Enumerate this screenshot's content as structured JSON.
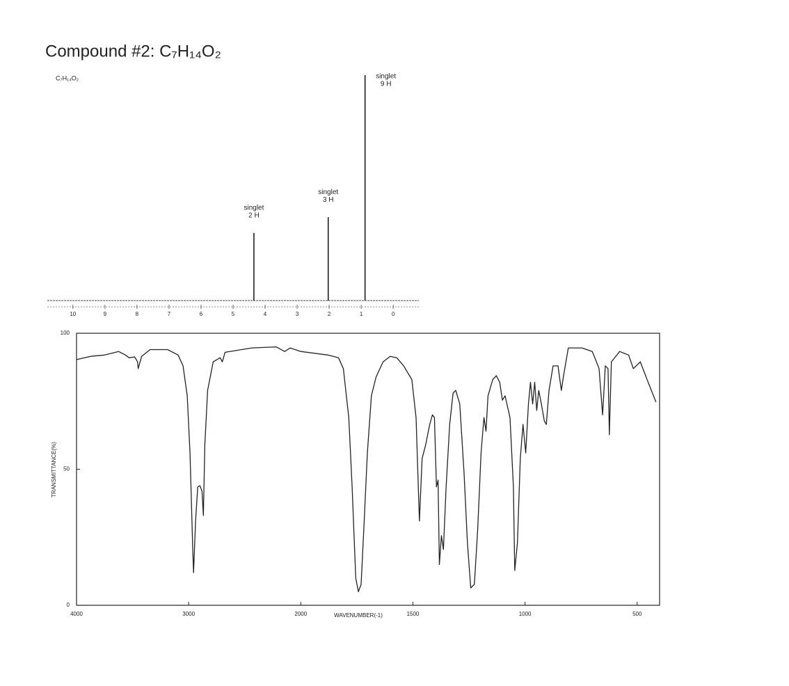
{
  "page_title": "Compound #2:  C₇H₁₄O₂",
  "chart_data": [
    {
      "type": "stem",
      "label": "C₇H₁₄O₂",
      "x": [
        4.35,
        2.03,
        0.88
      ],
      "values": [
        30,
        37,
        100
      ],
      "peak_labels": [
        "singlet",
        "singlet",
        "singlet"
      ],
      "peak_counts": [
        "2 H",
        "3 H",
        "9 H"
      ],
      "xlim": [
        10.8,
        -0.8
      ],
      "xticks": [
        10,
        9,
        8,
        7,
        6,
        5,
        4,
        3,
        2,
        1,
        0
      ],
      "ylim": [
        0,
        100
      ],
      "color": "#111111"
    },
    {
      "type": "line",
      "xlabel": "WAVENUMBER(-1)",
      "ylabel": "TRANSMITTANCE(%)",
      "xscale": "piecewise",
      "xlim": [
        4000,
        400
      ],
      "xticks": [
        4000,
        3000,
        2000,
        1500,
        1000,
        500
      ],
      "ylim": [
        0,
        100
      ],
      "yticks": [
        0,
        50,
        100
      ],
      "color": "#222222",
      "x": [
        4000,
        3875,
        3750,
        3625,
        3563,
        3531,
        3481,
        3456,
        3450,
        3419,
        3344,
        3188,
        3094,
        3050,
        3013,
        2988,
        2963,
        2956,
        2938,
        2919,
        2900,
        2881,
        2869,
        2856,
        2831,
        2781,
        2719,
        2700,
        2675,
        2438,
        2219,
        2144,
        2094,
        2000,
        1878,
        1832,
        1810,
        1786,
        1771,
        1755,
        1743,
        1731,
        1719,
        1703,
        1685,
        1664,
        1633,
        1602,
        1572,
        1541,
        1505,
        1486,
        1471,
        1459,
        1443,
        1425,
        1413,
        1404,
        1395,
        1388,
        1382,
        1373,
        1364,
        1352,
        1336,
        1321,
        1309,
        1291,
        1272,
        1257,
        1242,
        1226,
        1211,
        1196,
        1183,
        1174,
        1165,
        1144,
        1128,
        1113,
        1101,
        1089,
        1067,
        1052,
        1046,
        1034,
        1021,
        1009,
        997,
        985,
        976,
        966,
        957,
        948,
        939,
        927,
        914,
        905,
        893,
        875,
        853,
        838,
        829,
        807,
        746,
        700,
        670,
        654,
        642,
        630,
        624,
        615,
        578,
        538,
        517,
        486,
        456,
        416
      ],
      "values": [
        90.3,
        91.5,
        92,
        93.3,
        92,
        91,
        91.3,
        89.5,
        87,
        91.5,
        94,
        94,
        92,
        88,
        77,
        56,
        20,
        12,
        31,
        43.5,
        44,
        42,
        33,
        59,
        79,
        89.5,
        91,
        89.5,
        93,
        94.6,
        95,
        93.3,
        94.6,
        93.3,
        92,
        91,
        87,
        69,
        43.5,
        10,
        5,
        7.7,
        28,
        56,
        77,
        84,
        89.5,
        91.5,
        91,
        88,
        83,
        69,
        31,
        54,
        59,
        66.5,
        70,
        69,
        43.5,
        46,
        15,
        25.6,
        20.5,
        43.5,
        66.5,
        78,
        79,
        74,
        49,
        23,
        6.4,
        7.7,
        28,
        56,
        69,
        64,
        77,
        83,
        84.4,
        82,
        75.4,
        77,
        69,
        43.5,
        12.8,
        23,
        54,
        66.5,
        56,
        74,
        82,
        74,
        82,
        71.6,
        79,
        74,
        67.8,
        66.5,
        79,
        88,
        88,
        79,
        84,
        94.6,
        94.6,
        93.3,
        87,
        70,
        88,
        87,
        62.7,
        89.5,
        93.3,
        92,
        87,
        89.5,
        83,
        74.7
      ]
    }
  ]
}
